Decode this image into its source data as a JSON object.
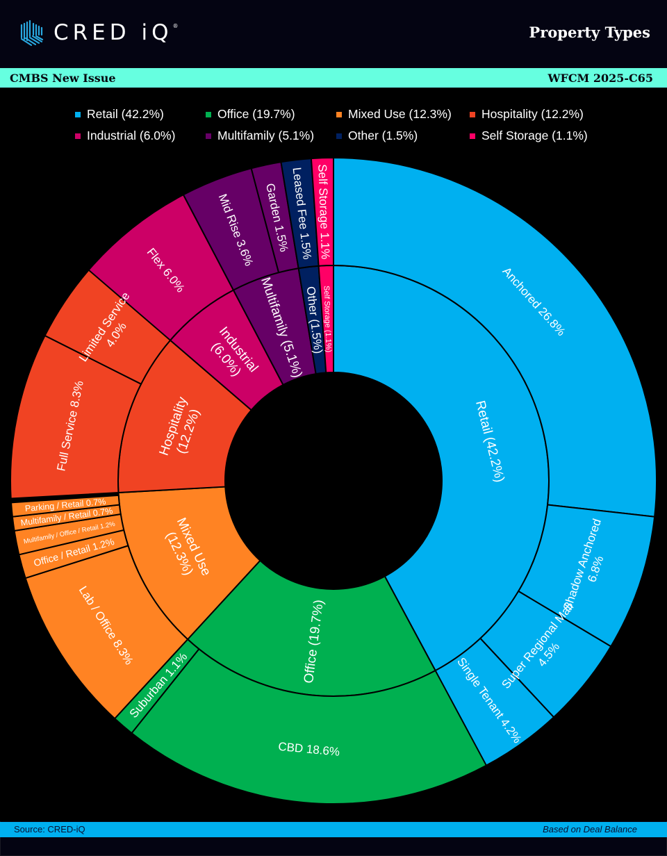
{
  "header": {
    "logo_text": "CRED iQ",
    "title": "Property Types"
  },
  "subheader": {
    "left": "CMBS New Issue",
    "right": "WFCM 2025-C65"
  },
  "footer": {
    "source": "Source:  CRED-iQ",
    "basis": "Based on Deal Balance"
  },
  "colors": {
    "header_bg": "#040412",
    "subheader_bg": "#66ffe0",
    "footer_bg": "#00b0f0",
    "logo_accent": "#29a8e0"
  },
  "chart_data": {
    "type": "sunburst",
    "title": "Property Types",
    "unit": "% of deal balance",
    "legend_position": "top",
    "legend": [
      {
        "label": "Retail (42.2%)",
        "color": "#00b0f0"
      },
      {
        "label": "Office (19.7%)",
        "color": "#00b050"
      },
      {
        "label": "Mixed Use (12.3%)",
        "color": "#ff8323"
      },
      {
        "label": "Hospitality (12.2%)",
        "color": "#f04323"
      },
      {
        "label": "Industrial (6.0%)",
        "color": "#cc0066"
      },
      {
        "label": "Multifamily (5.1%)",
        "color": "#660066"
      },
      {
        "label": "Other (1.5%)",
        "color": "#002060"
      },
      {
        "label": "Self Storage (1.1%)",
        "color": "#ff0066"
      }
    ],
    "categories": [
      {
        "name": "Retail",
        "value": 42.2,
        "label": "Retail (42.2%)",
        "color": "#00b0f0",
        "children": [
          {
            "name": "Anchored",
            "value": 26.8,
            "label": "Anchored 26.8%"
          },
          {
            "name": "Shadow Anchored",
            "value": 6.8,
            "label": "Shadow Anchored|6.8%"
          },
          {
            "name": "Super Regional Mall",
            "value": 4.5,
            "label": "Super Regional Mall|4.5%"
          },
          {
            "name": "Single Tenant",
            "value": 4.2,
            "label": "Single Tenant 4.2%"
          }
        ]
      },
      {
        "name": "Office",
        "value": 19.7,
        "label": "Office (19.7%)",
        "color": "#00b050",
        "children": [
          {
            "name": "CBD",
            "value": 18.6,
            "label": "CBD 18.6%"
          },
          {
            "name": "Suburban",
            "value": 1.1,
            "label": "Suburban 1.1%"
          }
        ]
      },
      {
        "name": "Mixed Use",
        "value": 12.3,
        "label": "Mixed Use|(12.3%)",
        "color": "#ff8323",
        "children": [
          {
            "name": "Lab / Office",
            "value": 8.3,
            "label": "Lab / Office 8.3%"
          },
          {
            "name": "Office / Retail",
            "value": 1.2,
            "label": "Office / Retail 1.2%"
          },
          {
            "name": "Multifamily / Office / Retail",
            "value": 1.2,
            "label": "Multifamily / Office / Retail 1.2%"
          },
          {
            "name": "Multifamily / Retail",
            "value": 0.7,
            "label": "Multifamily  / Retail 0.7%"
          },
          {
            "name": "Parking / Retail",
            "value": 0.7,
            "label": "Parking / Retail 0.7%"
          }
        ]
      },
      {
        "name": "Hospitality",
        "value": 12.2,
        "label": "Hospitality|(12.2%)",
        "color": "#f04323",
        "children": [
          {
            "name": "Full Service",
            "value": 8.3,
            "label": "Full Service 8.3%"
          },
          {
            "name": "Limited Service",
            "value": 4.0,
            "label": "Limited Service|4.0%"
          }
        ]
      },
      {
        "name": "Industrial",
        "value": 6.0,
        "label": "Industrial|(6.0%)",
        "color": "#cc0066",
        "children": [
          {
            "name": "Flex",
            "value": 6.0,
            "label": "Flex 6.0%"
          }
        ]
      },
      {
        "name": "Multifamily",
        "value": 5.1,
        "label": "Multifamily (5.1%)",
        "color": "#660066",
        "children": [
          {
            "name": "Mid Rise",
            "value": 3.6,
            "label": "Mid Rise 3.6%"
          },
          {
            "name": "Garden",
            "value": 1.5,
            "label": "Garden 1.5%"
          }
        ]
      },
      {
        "name": "Other",
        "value": 1.5,
        "label": "Other (1.5%)",
        "color": "#002060",
        "children": [
          {
            "name": "Leased Fee",
            "value": 1.5,
            "label": "Leased Fee 1.5%"
          }
        ]
      },
      {
        "name": "Self Storage",
        "value": 1.1,
        "label": "Self Storage (1.1%)",
        "color": "#ff0066",
        "children": [
          {
            "name": "Self Storage",
            "value": 1.1,
            "label": "Self Storage 1.1%"
          }
        ]
      }
    ]
  }
}
